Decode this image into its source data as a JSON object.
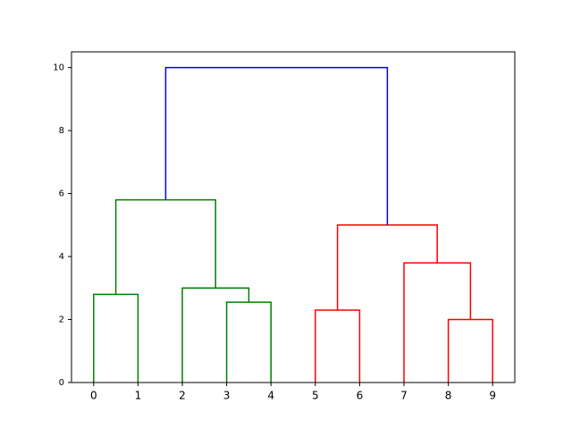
{
  "chart_data": {
    "type": "dendrogram",
    "categories": [
      "0",
      "1",
      "2",
      "3",
      "4",
      "5",
      "6",
      "7",
      "8",
      "9"
    ],
    "merges": [
      {
        "children": [
          0,
          1
        ],
        "height": 2.8,
        "color": "#008000"
      },
      {
        "children": [
          3,
          4
        ],
        "height": 2.55,
        "color": "#008000"
      },
      {
        "children": [
          2,
          11
        ],
        "height": 3.0,
        "color": "#008000"
      },
      {
        "children": [
          10,
          12
        ],
        "height": 5.8,
        "color": "#008000"
      },
      {
        "children": [
          5,
          6
        ],
        "height": 2.3,
        "color": "#ff0000"
      },
      {
        "children": [
          8,
          9
        ],
        "height": 2.0,
        "color": "#ff0000"
      },
      {
        "children": [
          7,
          15
        ],
        "height": 3.8,
        "color": "#ff0000"
      },
      {
        "children": [
          14,
          16
        ],
        "height": 5.0,
        "color": "#ff0000"
      },
      {
        "children": [
          13,
          17
        ],
        "height": 10.0,
        "color": "#0000ff"
      }
    ],
    "ylim": [
      0,
      10.5
    ],
    "yticks": [
      0,
      2,
      4,
      6,
      8,
      10
    ]
  }
}
